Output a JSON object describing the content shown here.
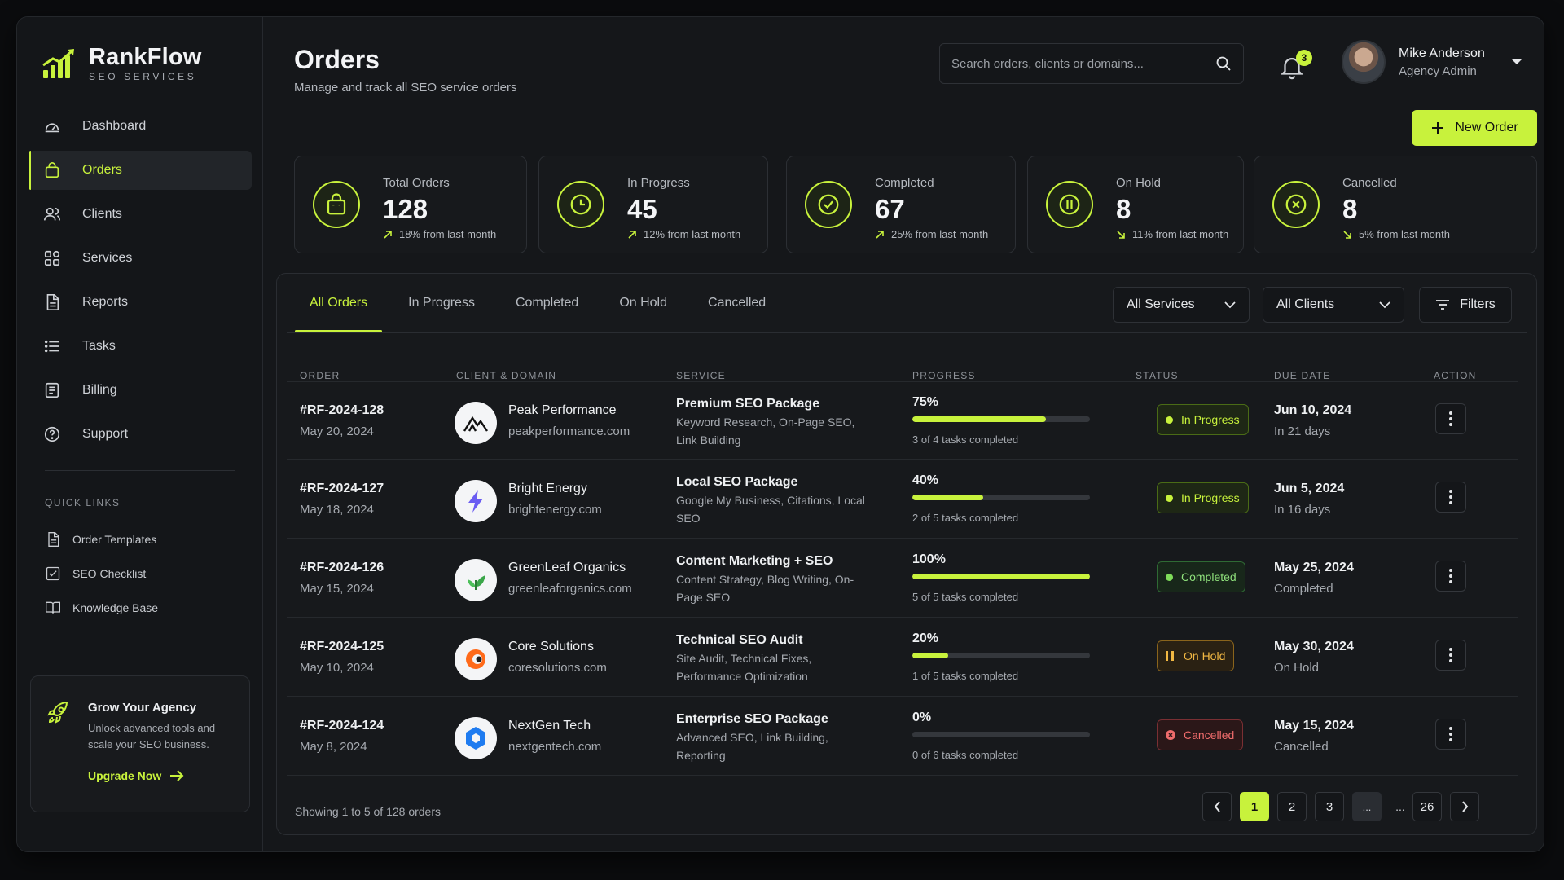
{
  "brand": {
    "name": "RankFlow",
    "tagline": "SEO SERVICES"
  },
  "nav": [
    {
      "label": "Dashboard",
      "icon": "gauge-icon"
    },
    {
      "label": "Orders",
      "icon": "bag-icon",
      "active": true
    },
    {
      "label": "Clients",
      "icon": "users-icon"
    },
    {
      "label": "Services",
      "icon": "grid-icon"
    },
    {
      "label": "Reports",
      "icon": "document-icon"
    },
    {
      "label": "Tasks",
      "icon": "list-icon"
    },
    {
      "label": "Billing",
      "icon": "receipt-icon"
    },
    {
      "label": "Support",
      "icon": "help-icon"
    }
  ],
  "quick_links": {
    "title": "QUICK LINKS",
    "items": [
      {
        "label": "Order Templates",
        "icon": "document-icon"
      },
      {
        "label": "SEO Checklist",
        "icon": "checkbox-icon"
      },
      {
        "label": "Knowledge Base",
        "icon": "book-icon"
      }
    ]
  },
  "promo": {
    "title": "Grow Your Agency",
    "desc": "Unlock advanced tools and scale your SEO business.",
    "link": "Upgrade Now"
  },
  "header": {
    "title": "Orders",
    "subtitle": "Manage and track all SEO service orders",
    "search_placeholder": "Search orders, clients or domains...",
    "notifications": "3",
    "user_name": "Mike Anderson",
    "user_role": "Agency Admin",
    "new_order": "New Order"
  },
  "stats": [
    {
      "label": "Total Orders",
      "value": "128",
      "trend": "18% from last month",
      "dir": "up",
      "icon": "bag-icon"
    },
    {
      "label": "In Progress",
      "value": "45",
      "trend": "12% from last month",
      "dir": "up",
      "icon": "clock-icon"
    },
    {
      "label": "Completed",
      "value": "67",
      "trend": "25% from last month",
      "dir": "up",
      "icon": "check-circle-icon"
    },
    {
      "label": "On Hold",
      "value": "8",
      "trend": "11% from last month",
      "dir": "down",
      "icon": "pause-icon"
    },
    {
      "label": "Cancelled",
      "value": "8",
      "trend": "5% from last month",
      "dir": "down",
      "icon": "x-circle-icon"
    }
  ],
  "tabs": [
    "All Orders",
    "In Progress",
    "Completed",
    "On Hold",
    "Cancelled"
  ],
  "filters": {
    "services": "All Services",
    "clients": "All Clients",
    "filters": "Filters"
  },
  "columns": [
    "ORDER",
    "CLIENT & DOMAIN",
    "SERVICE",
    "PROGRESS",
    "STATUS",
    "DUE DATE",
    "ACTION"
  ],
  "orders": [
    {
      "id": "#RF-2024-128",
      "date": "May 20, 2024",
      "client": "Peak Performance",
      "domain": "peakperformance.com",
      "logo": "mountain-icon",
      "service": "Premium SEO Package",
      "service_desc": "Keyword Research, On-Page SEO, Link Building",
      "progress": "75%",
      "progress_value": 0.75,
      "tasks": "3 of 4 tasks completed",
      "status": "In Progress",
      "status_type": "progress",
      "due": "Jun 10, 2024",
      "due_note": "In 21 days"
    },
    {
      "id": "#RF-2024-127",
      "date": "May 18, 2024",
      "client": "Bright Energy",
      "domain": "brightenergy.com",
      "logo": "lightning-icon",
      "service": "Local SEO Package",
      "service_desc": "Google My Business, Citations, Local SEO",
      "progress": "40%",
      "progress_value": 0.4,
      "tasks": "2 of 5 tasks completed",
      "status": "In Progress",
      "status_type": "progress",
      "due": "Jun 5, 2024",
      "due_note": "In 16 days"
    },
    {
      "id": "#RF-2024-126",
      "date": "May 15, 2024",
      "client": "GreenLeaf Organics",
      "domain": "greenleaforganics.com",
      "logo": "leaf-icon",
      "service": "Content Marketing + SEO",
      "service_desc": "Content Strategy, Blog Writing, On-Page SEO",
      "progress": "100%",
      "progress_value": 1.0,
      "tasks": "5 of 5 tasks completed",
      "status": "Completed",
      "status_type": "done",
      "due": "May 25, 2024",
      "due_note": "Completed"
    },
    {
      "id": "#RF-2024-125",
      "date": "May 10, 2024",
      "client": "Core Solutions",
      "domain": "coresolutions.com",
      "logo": "ring-icon",
      "service": "Technical SEO Audit",
      "service_desc": "Site Audit, Technical Fixes, Performance Optimization",
      "progress": "20%",
      "progress_value": 0.2,
      "tasks": "1 of 5 tasks completed",
      "status": "On Hold",
      "status_type": "hold",
      "due": "May 30, 2024",
      "due_note": "On Hold"
    },
    {
      "id": "#RF-2024-124",
      "date": "May 8, 2024",
      "client": "NextGen Tech",
      "domain": "nextgentech.com",
      "logo": "hexagon-icon",
      "service": "Enterprise SEO Package",
      "service_desc": "Advanced SEO, Link Building, Reporting",
      "progress": "0%",
      "progress_value": 0.0,
      "tasks": "0 of 6 tasks completed",
      "status": "Cancelled",
      "status_type": "cancel",
      "due": "May 15, 2024",
      "due_note": "Cancelled"
    }
  ],
  "footer": {
    "showing": "Showing 1 to 5 of 128 orders",
    "pages": [
      "1",
      "2",
      "3",
      "...",
      "...",
      "26"
    ]
  },
  "colors": {
    "accent": "#c8f23c",
    "bg": "#15171a"
  }
}
